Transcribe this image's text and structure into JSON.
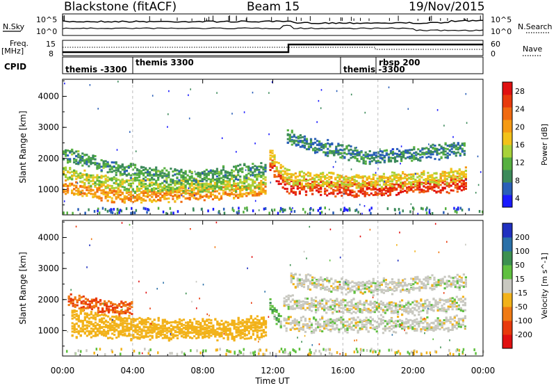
{
  "header": {
    "site": "Blackstone (fitACF)",
    "beam": "Beam 15",
    "date": "19/Nov/2015"
  },
  "top_panels": {
    "nsky_label": "N.Sky",
    "nsearch_label": "N.Search",
    "noise_ticks_left": [
      "10^5",
      "10^0"
    ],
    "noise_ticks_right": [
      "10^5",
      "10^0"
    ],
    "freq_label": "Freq.",
    "freq_unit": "[MHz]",
    "freq_ticks": [
      "15",
      "8"
    ],
    "nave_label": "Nave",
    "nave_ticks": [
      "60",
      "0"
    ],
    "cpid_label": "CPID",
    "cpid_segments": [
      "themis -3300",
      "themis 3300",
      "themis -3300",
      "rbsp 200"
    ]
  },
  "chart_data": [
    {
      "type": "heatmap",
      "name": "power",
      "ylabel": "Slant Range [km]",
      "colorbar_label": "Power [dB]",
      "colorbar_ticks": [
        "28",
        "24",
        "20",
        "16",
        "12",
        "8",
        "4"
      ],
      "colorscale": [
        "#1a1aff",
        "#2a5fb8",
        "#3c8a5a",
        "#56b040",
        "#a8d23a",
        "#f2c21a",
        "#f59a14",
        "#f06a10",
        "#e83a0c",
        "#e01010"
      ],
      "y_ticks": [
        "4000",
        "3000",
        "2000",
        "1000"
      ],
      "yrange": [
        180,
        4550
      ],
      "xrange": [
        0,
        24
      ],
      "echo_bands": [
        {
          "t": [
            0.0,
            1.0,
            2.0,
            3.0,
            4.0,
            5.0,
            6.0,
            7.0,
            8.0,
            9.0,
            10.0,
            11.0,
            11.6
          ],
          "r": [
            1050,
            950,
            850,
            780,
            750,
            780,
            800,
            820,
            850,
            870,
            900,
            950,
            1000
          ],
          "level": 20
        },
        {
          "t": [
            0.0,
            1.0,
            2.0,
            3.0,
            4.0,
            5.0,
            6.0,
            7.0,
            8.0,
            9.0,
            10.0,
            11.0,
            11.6
          ],
          "r": [
            1500,
            1350,
            1250,
            1150,
            1100,
            1080,
            1070,
            1070,
            1090,
            1120,
            1160,
            1200,
            1300
          ],
          "level": 13
        },
        {
          "t": [
            0.0,
            1.0,
            2.0,
            3.0,
            4.0,
            5.0,
            6.0,
            7.0,
            8.0,
            9.0,
            10.0,
            11.0,
            11.6
          ],
          "r": [
            2100,
            1950,
            1800,
            1650,
            1550,
            1450,
            1400,
            1380,
            1400,
            1450,
            1500,
            1600,
            1700
          ],
          "level": 8
        },
        {
          "t": [
            11.8,
            12.2,
            12.6,
            13.0,
            14.0,
            15.0,
            16.0,
            17.0,
            18.0,
            19.0,
            20.0,
            21.0,
            22.0,
            23.0
          ],
          "r": [
            1800,
            1400,
            1150,
            1050,
            1020,
            1000,
            980,
            960,
            990,
            1010,
            1040,
            1080,
            1100,
            1150
          ],
          "level": 27
        },
        {
          "t": [
            11.8,
            12.2,
            12.6,
            13.0,
            14.0,
            15.0,
            16.0,
            17.0,
            18.0,
            19.0,
            20.0,
            21.0,
            22.0,
            23.0
          ],
          "r": [
            2100,
            1700,
            1450,
            1350,
            1300,
            1280,
            1250,
            1220,
            1250,
            1280,
            1300,
            1350,
            1380,
            1450
          ],
          "level": 16
        },
        {
          "t": [
            12.8,
            14.0,
            15.0,
            16.0,
            17.0,
            18.0,
            19.0,
            20.0,
            21.0,
            22.0,
            23.0
          ],
          "r": [
            2700,
            2400,
            2300,
            2200,
            2050,
            2000,
            2050,
            2100,
            2150,
            2200,
            2300
          ],
          "level": 6
        }
      ]
    },
    {
      "type": "heatmap",
      "name": "velocity",
      "ylabel": "Slant Range [km]",
      "colorbar_label": "Velocity [m s^-1]",
      "colorbar_ticks": [
        "200",
        "100",
        "50",
        "15",
        "-15",
        "-50",
        "-100",
        "-200"
      ],
      "colorscale": [
        "#2030c0",
        "#2a70a8",
        "#3c9050",
        "#60c040",
        "#c8c8c0",
        "#f2b21a",
        "#f07a14",
        "#e83a0c",
        "#e01010"
      ],
      "y_ticks": [
        "4000",
        "3000",
        "2000",
        "1000"
      ],
      "yrange": [
        180,
        4550
      ],
      "xrange": [
        0,
        24
      ],
      "echo_bands": [
        {
          "t": [
            0.3,
            1.0,
            2.0,
            3.0,
            4.0
          ],
          "r": [
            2000,
            1850,
            1750,
            1700,
            1650
          ],
          "vel": -150
        },
        {
          "t": [
            0.5,
            1.0,
            2.0,
            3.0,
            4.0,
            5.0,
            6.0,
            7.0,
            8.0,
            9.0,
            10.0,
            11.0,
            11.6
          ],
          "r": [
            1500,
            1400,
            1300,
            1250,
            1200,
            1150,
            1100,
            1100,
            1100,
            1100,
            1150,
            1200,
            1250
          ],
          "vel": -50
        },
        {
          "t": [
            0.5,
            2.0,
            4.0,
            6.0,
            8.0,
            10.0,
            11.6
          ],
          "r": [
            1000,
            950,
            900,
            900,
            900,
            900,
            950
          ],
          "vel": -50
        },
        {
          "t": [
            11.8,
            12.2,
            12.5
          ],
          "r": [
            1800,
            1400,
            1200
          ],
          "vel": 30
        },
        {
          "t": [
            12.6,
            14.0,
            16.0,
            18.0,
            20.0,
            22.0,
            23.0
          ],
          "r": [
            1200,
            1150,
            1150,
            1150,
            1150,
            1200,
            1250
          ],
          "vel": 0
        },
        {
          "t": [
            12.6,
            14.0,
            16.0,
            18.0,
            20.0,
            22.0,
            23.0
          ],
          "r": [
            1900,
            1800,
            1750,
            1700,
            1700,
            1800,
            1850
          ],
          "vel": 0
        },
        {
          "t": [
            13.0,
            15.0,
            17.0,
            19.0,
            21.0,
            23.0
          ],
          "r": [
            2600,
            2450,
            2350,
            2400,
            2500,
            2550
          ],
          "vel": 0
        }
      ]
    }
  ],
  "x_axis": {
    "label": "Time UT",
    "ticks": [
      "00:00",
      "04:00",
      "08:00",
      "12:00",
      "16:00",
      "20:00",
      "00:00"
    ]
  }
}
